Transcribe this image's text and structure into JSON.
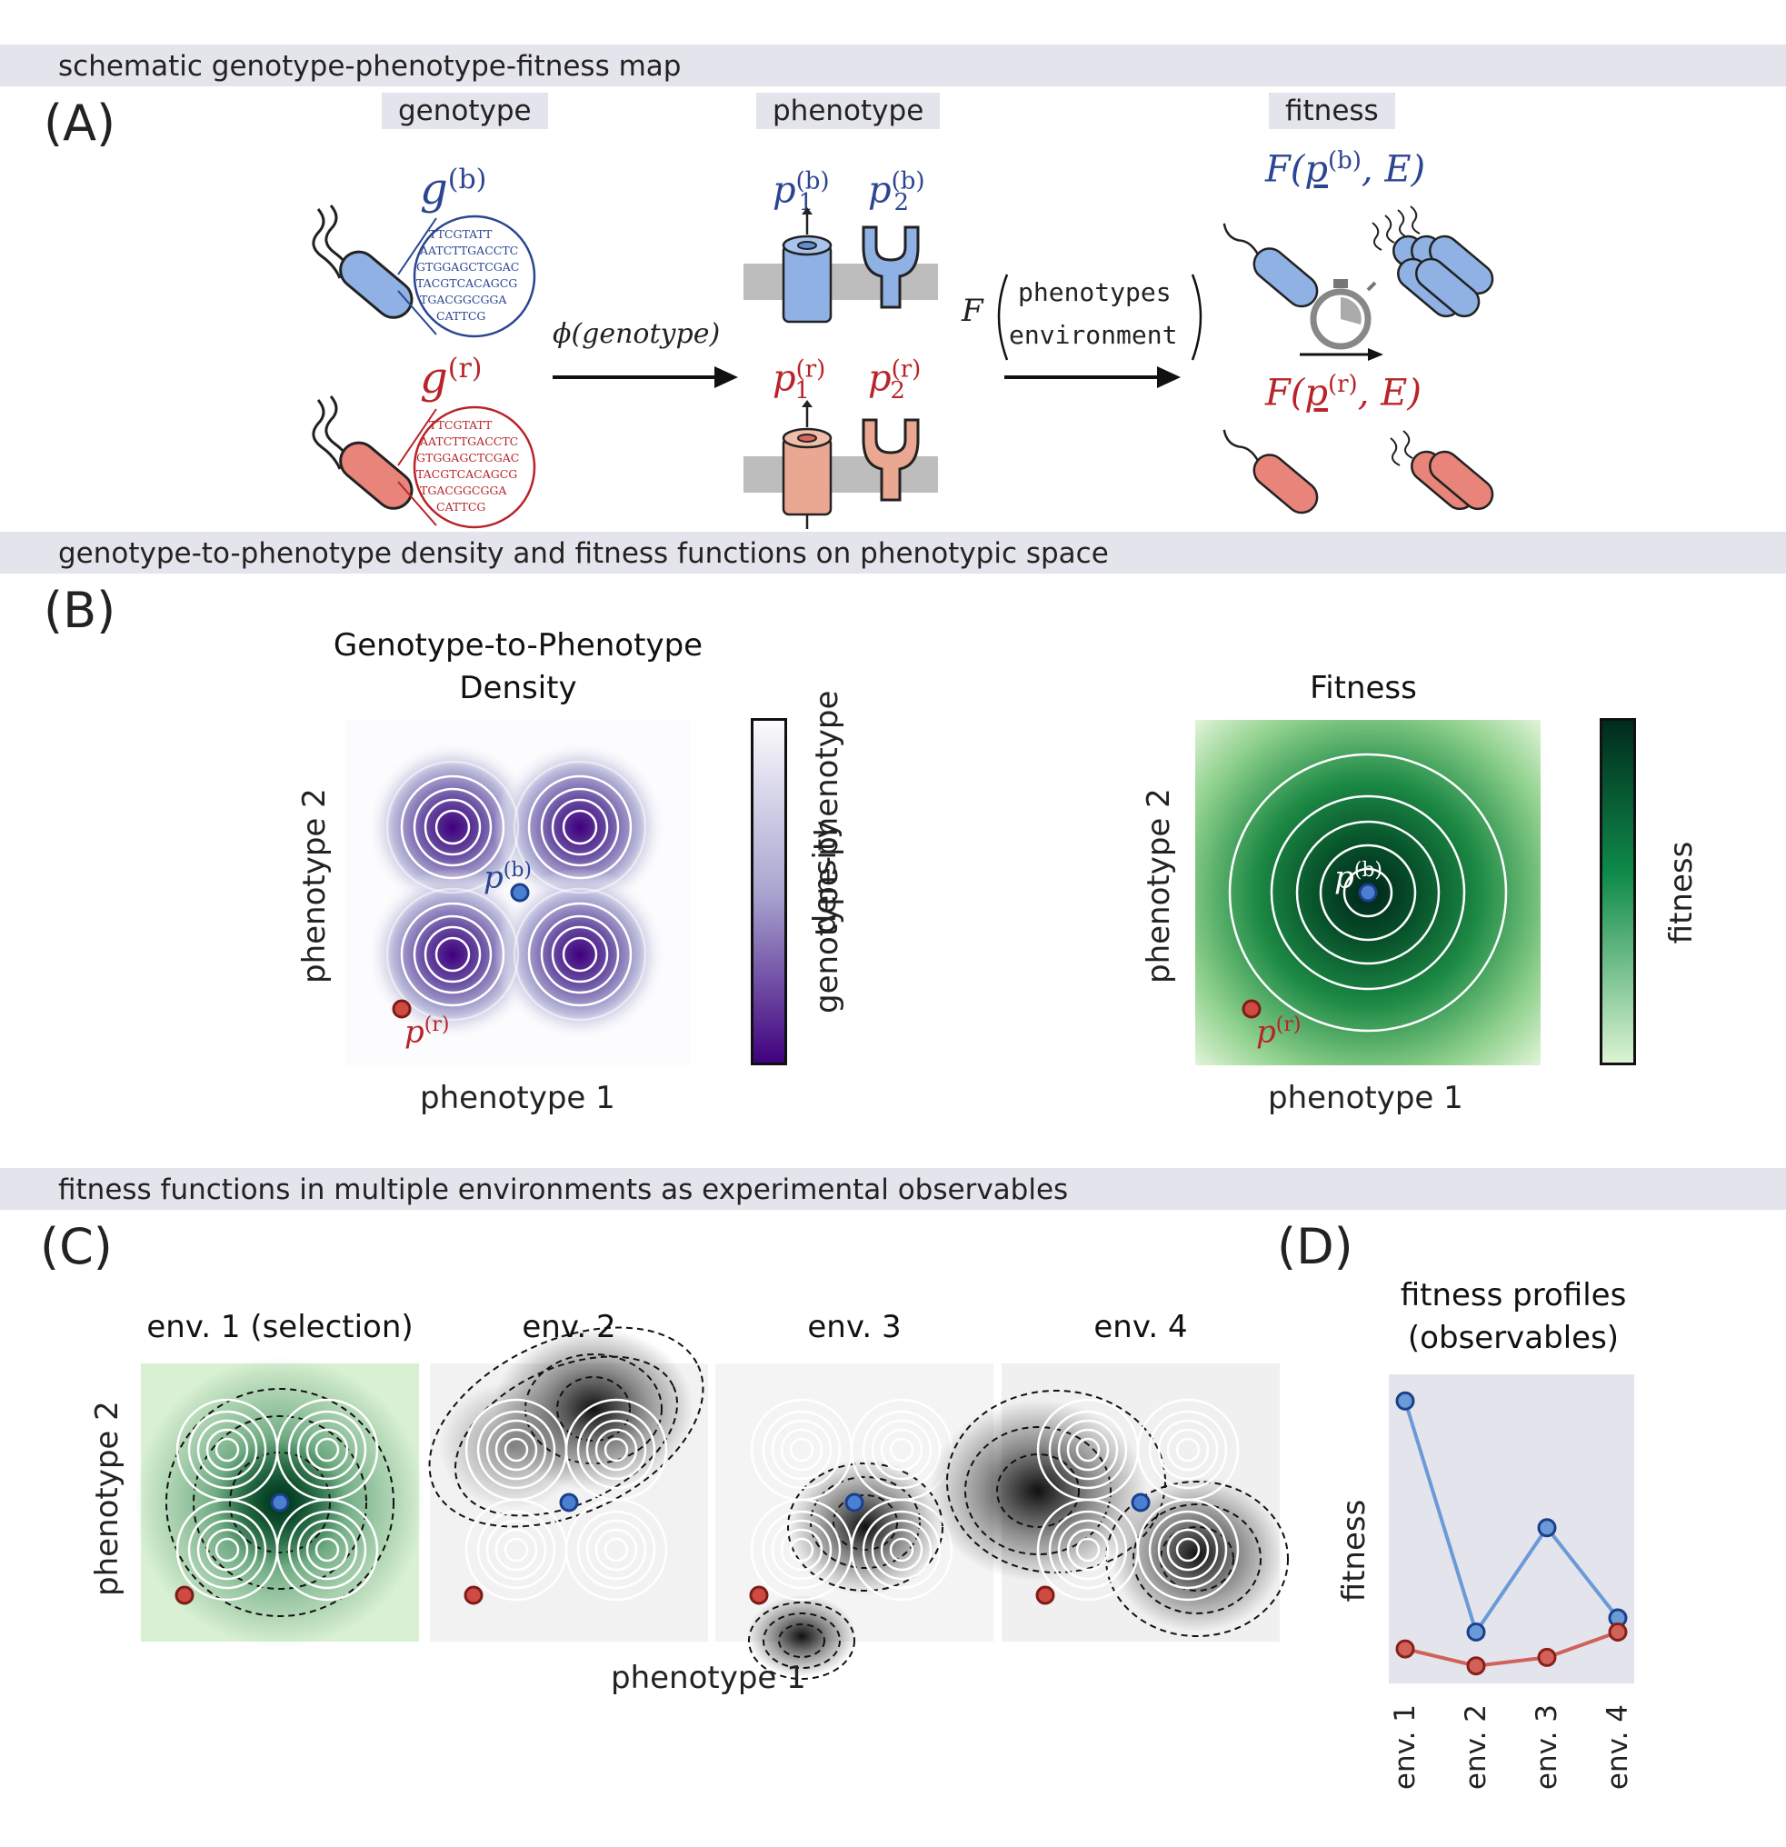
{
  "sections": [
    {
      "band": "schematic genotype-phenotype-fitness map"
    },
    {
      "band": "genotype-to-phenotype density and fitness functions on phenotypic space"
    },
    {
      "band": "fitness functions in multiple environments as experimental observables"
    }
  ],
  "panelA": {
    "label": "(A)",
    "tags": {
      "genotype": "genotype",
      "phenotype": "phenotype",
      "fitness": "fitness"
    },
    "g_b": "g",
    "g_b_sup": "(b)",
    "g_r": "g",
    "g_r_sup": "(r)",
    "dna_lines": [
      "TTCGTATT",
      "AATCTTGACCTC",
      "GTGGAGCTCGAC",
      "TACGTCACAGCG",
      "TGACGGCGGA",
      "CATTCG"
    ],
    "phi_label": "ϕ(genotype)",
    "F_label": "F",
    "F_args": [
      "phenotypes",
      "environment"
    ],
    "p1b": "p",
    "p1b_sup": "(b)",
    "p1b_sub": "1",
    "p2b": "p",
    "p2b_sup": "(b)",
    "p2b_sub": "2",
    "p1r": "p",
    "p1r_sup": "(r)",
    "p1r_sub": "1",
    "p2r": "p",
    "p2r_sup": "(r)",
    "p2r_sub": "2",
    "fit_b": "F(p(b), E)",
    "fit_r": "F(p(r), E)",
    "colors": {
      "blue": "#2b4590",
      "red": "#b8242a",
      "blue_fill": "#8fb1e3",
      "red_fill": "#e8847a"
    }
  },
  "panelB": {
    "label": "(B)",
    "density_title": [
      "Genotype-to-Phenotype",
      "Density"
    ],
    "density_colorbar_label": [
      "genotype-phenotype",
      "density"
    ],
    "fitness_title": "Fitness",
    "fitness_colorbar_label": "fitness",
    "xlabel": "phenotype 1",
    "ylabel": "phenotype 2",
    "p_b_label": "p(b)",
    "p_r_label": "p(r)"
  },
  "panelC": {
    "label": "(C)",
    "envs": [
      "env. 1 (selection)",
      "env. 2",
      "env. 3",
      "env. 4"
    ],
    "xlabel": "phenotype 1",
    "ylabel": "phenotype 2"
  },
  "panelD": {
    "label": "(D)",
    "title": [
      "fitness profiles",
      "(observables)"
    ],
    "ylabel": "fitness"
  },
  "chart_data": {
    "type": "line",
    "categories": [
      "env. 1",
      "env. 2",
      "env. 3",
      "env. 4"
    ],
    "series": [
      {
        "color": "#6a9ad8",
        "values": [
          0.97,
          0.15,
          0.52,
          0.2
        ]
      },
      {
        "color": "#d0625a",
        "values": [
          0.09,
          0.03,
          0.06,
          0.15
        ]
      }
    ],
    "ylabel": "fitness",
    "ylim": [
      0,
      1
    ]
  }
}
